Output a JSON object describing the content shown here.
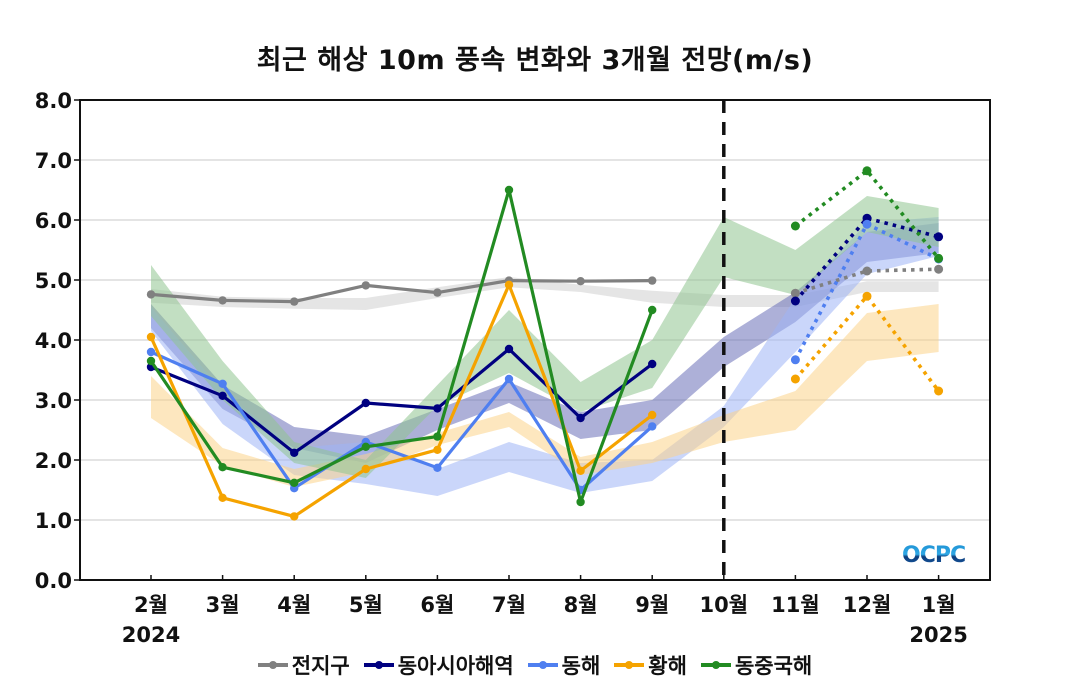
{
  "chart_data": {
    "type": "line",
    "title": "최근 해상 10m 풍속 변화와 3개월 전망(m/s)",
    "xlabel": "",
    "ylabel": "",
    "ylim": [
      0,
      8
    ],
    "yticks": [
      "0.0",
      "1.0",
      "2.0",
      "3.0",
      "4.0",
      "5.0",
      "6.0",
      "7.0",
      "8.0"
    ],
    "grid": true,
    "categories": [
      "2월",
      "3월",
      "4월",
      "5월",
      "6월",
      "7월",
      "8월",
      "9월",
      "10월",
      "11월",
      "12월",
      "1월"
    ],
    "year_labels": [
      {
        "index": 0,
        "label": "2024"
      },
      {
        "index": 11,
        "label": "2025"
      }
    ],
    "forecast_start_divider": "10월",
    "legend_position": "bottom",
    "series": [
      {
        "name": "전지구",
        "color": "#808080",
        "band_color": "#cfcfcf",
        "observed": [
          4.76,
          4.66,
          4.64,
          4.91,
          4.79,
          4.99,
          4.98,
          4.99,
          null,
          null,
          null,
          null
        ],
        "forecast": [
          null,
          null,
          null,
          null,
          null,
          null,
          null,
          null,
          null,
          4.78,
          5.15,
          5.18
        ],
        "band_lower": [
          4.62,
          4.55,
          4.52,
          4.5,
          4.7,
          4.88,
          4.8,
          4.62,
          4.55,
          4.55,
          4.8,
          4.8
        ],
        "band_upper": [
          4.85,
          4.72,
          4.7,
          4.7,
          4.88,
          5.05,
          4.92,
          4.82,
          4.75,
          4.75,
          4.98,
          4.98
        ]
      },
      {
        "name": "동아시아해역",
        "color": "#000080",
        "band_color": "#6a6fb8",
        "observed": [
          3.55,
          3.07,
          2.12,
          2.95,
          2.86,
          3.85,
          2.7,
          3.6,
          null,
          null,
          null,
          null
        ],
        "forecast": [
          null,
          null,
          null,
          null,
          null,
          null,
          null,
          null,
          null,
          4.65,
          6.03,
          5.72
        ],
        "band_lower": [
          4.2,
          2.85,
          2.2,
          1.95,
          2.5,
          2.95,
          2.35,
          2.5,
          3.55,
          4.3,
          5.3,
          5.45
        ],
        "band_upper": [
          4.6,
          3.25,
          2.55,
          2.4,
          2.85,
          3.3,
          2.8,
          3.0,
          4.05,
          4.8,
          5.8,
          5.95
        ]
      },
      {
        "name": "동해",
        "color": "#4f7ff0",
        "band_color": "#9fb5f5",
        "observed": [
          3.8,
          3.27,
          1.53,
          2.3,
          1.87,
          3.35,
          1.5,
          2.56,
          null,
          null,
          null,
          null
        ],
        "forecast": [
          null,
          null,
          null,
          null,
          null,
          null,
          null,
          null,
          null,
          3.67,
          5.93,
          5.35
        ],
        "band_lower": [
          4.15,
          2.6,
          1.75,
          1.6,
          1.4,
          1.8,
          1.45,
          1.65,
          2.55,
          3.8,
          5.1,
          5.4
        ],
        "band_upper": [
          4.55,
          3.15,
          2.2,
          2.3,
          1.85,
          2.3,
          1.95,
          2.0,
          2.9,
          4.7,
          5.95,
          6.05
        ]
      },
      {
        "name": "황해",
        "color": "#f5a300",
        "band_color": "#fbd38a",
        "observed": [
          4.05,
          1.37,
          1.06,
          1.85,
          2.17,
          4.92,
          1.82,
          2.75,
          null,
          null,
          null,
          null
        ],
        "forecast": [
          null,
          null,
          null,
          null,
          null,
          null,
          null,
          null,
          null,
          3.35,
          4.73,
          3.15
        ],
        "band_lower": [
          2.7,
          1.9,
          1.55,
          1.8,
          2.25,
          2.55,
          1.75,
          1.95,
          2.3,
          2.5,
          3.65,
          3.8
        ],
        "band_upper": [
          3.4,
          2.2,
          1.85,
          2.1,
          2.45,
          2.8,
          2.05,
          2.3,
          2.75,
          3.15,
          4.45,
          4.6
        ]
      },
      {
        "name": "동중국해",
        "color": "#228b22",
        "band_color": "#8fc58f",
        "observed": [
          3.65,
          1.88,
          1.62,
          2.22,
          2.39,
          6.5,
          1.3,
          4.5,
          null,
          null,
          null,
          null
        ],
        "forecast": [
          null,
          null,
          null,
          null,
          null,
          null,
          null,
          null,
          null,
          5.9,
          6.82,
          5.36
        ],
        "band_lower": [
          4.4,
          3.0,
          1.95,
          1.7,
          2.9,
          3.45,
          2.8,
          3.2,
          5.05,
          4.75,
          5.8,
          5.55
        ],
        "band_upper": [
          5.25,
          3.65,
          2.3,
          2.0,
          3.25,
          4.5,
          3.3,
          4.0,
          6.05,
          5.5,
          6.4,
          6.2
        ]
      }
    ]
  },
  "legend": [
    {
      "label": "전지구",
      "color": "#808080"
    },
    {
      "label": "동아시아해역",
      "color": "#000080"
    },
    {
      "label": "동해",
      "color": "#4f7ff0"
    },
    {
      "label": "황해",
      "color": "#f5a300"
    },
    {
      "label": "동중국해",
      "color": "#228b22"
    }
  ],
  "logo_text": "OCPC"
}
